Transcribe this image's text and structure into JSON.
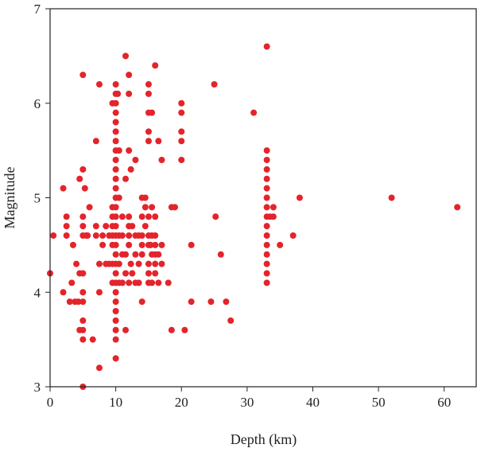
{
  "chart_data": {
    "type": "scatter",
    "title": "",
    "xlabel": "Depth (km)",
    "ylabel": "Magnitude",
    "xlim": [
      0,
      65
    ],
    "ylim": [
      3,
      7
    ],
    "xticks": [
      "0",
      "10",
      "20",
      "30",
      "40",
      "50",
      "60"
    ],
    "yticks": [
      "3",
      "4",
      "5",
      "6",
      "7"
    ],
    "grid": false,
    "marker_color": "#e3242b",
    "series": [
      {
        "points": [
          [
            0,
            4.2
          ],
          [
            0.5,
            4.6
          ],
          [
            2,
            5.1
          ],
          [
            2,
            4.0
          ],
          [
            2.5,
            4.7
          ],
          [
            2.5,
            4.8
          ],
          [
            2.5,
            4.6
          ],
          [
            3,
            3.9
          ],
          [
            3.3,
            4.1
          ],
          [
            3.5,
            4.5
          ],
          [
            3.8,
            3.9
          ],
          [
            4,
            4.3
          ],
          [
            4.3,
            3.9
          ],
          [
            4.5,
            4.2
          ],
          [
            4.5,
            3.6
          ],
          [
            4.5,
            5.2
          ],
          [
            5,
            6.3
          ],
          [
            5,
            5.3
          ],
          [
            5,
            4.8
          ],
          [
            5,
            4.7
          ],
          [
            5,
            4.6
          ],
          [
            5,
            4.2
          ],
          [
            5,
            4.0
          ],
          [
            5,
            3.9
          ],
          [
            5,
            3.7
          ],
          [
            5,
            3.6
          ],
          [
            5,
            3.5
          ],
          [
            5,
            3.0
          ],
          [
            5.3,
            5.1
          ],
          [
            5.5,
            4.6
          ],
          [
            5.7,
            4.6
          ],
          [
            6,
            4.9
          ],
          [
            6.5,
            3.5
          ],
          [
            7,
            5.6
          ],
          [
            7,
            4.7
          ],
          [
            7,
            4.6
          ],
          [
            7.5,
            6.2
          ],
          [
            7.5,
            4.3
          ],
          [
            7.5,
            4.0
          ],
          [
            7.5,
            3.2
          ],
          [
            8,
            4.5
          ],
          [
            8,
            4.6
          ],
          [
            8.5,
            4.3
          ],
          [
            8.5,
            4.7
          ],
          [
            9,
            4.3
          ],
          [
            9,
            4.6
          ],
          [
            9.5,
            4.1
          ],
          [
            9.5,
            4.3
          ],
          [
            9.5,
            4.5
          ],
          [
            9.5,
            4.6
          ],
          [
            9.5,
            4.7
          ],
          [
            9.5,
            4.8
          ],
          [
            9.5,
            4.9
          ],
          [
            9.5,
            6.0
          ],
          [
            10,
            6.2
          ],
          [
            10,
            6.1
          ],
          [
            10,
            6.0
          ],
          [
            10,
            5.9
          ],
          [
            10,
            5.8
          ],
          [
            10,
            5.7
          ],
          [
            10,
            5.6
          ],
          [
            10,
            5.5
          ],
          [
            10,
            5.4
          ],
          [
            10,
            5.3
          ],
          [
            10,
            5.2
          ],
          [
            10,
            5.1
          ],
          [
            10,
            5.0
          ],
          [
            10,
            4.9
          ],
          [
            10,
            4.8
          ],
          [
            10,
            4.7
          ],
          [
            10,
            4.6
          ],
          [
            10,
            4.5
          ],
          [
            10,
            4.4
          ],
          [
            10,
            4.3
          ],
          [
            10,
            4.2
          ],
          [
            10,
            4.1
          ],
          [
            10,
            4.0
          ],
          [
            10,
            3.9
          ],
          [
            10,
            3.8
          ],
          [
            10,
            3.7
          ],
          [
            10,
            3.6
          ],
          [
            10,
            3.5
          ],
          [
            10,
            3.3
          ],
          [
            10.3,
            6.1
          ],
          [
            10.5,
            5.5
          ],
          [
            10.5,
            5.0
          ],
          [
            10.5,
            4.6
          ],
          [
            10.5,
            4.3
          ],
          [
            10.5,
            4.1
          ],
          [
            11,
            4.8
          ],
          [
            11,
            4.6
          ],
          [
            11,
            4.4
          ],
          [
            11,
            4.1
          ],
          [
            11.5,
            6.5
          ],
          [
            11.5,
            5.2
          ],
          [
            11.5,
            4.4
          ],
          [
            11.5,
            4.2
          ],
          [
            11.5,
            3.6
          ],
          [
            12,
            6.3
          ],
          [
            12,
            6.1
          ],
          [
            12,
            5.5
          ],
          [
            12,
            4.8
          ],
          [
            12,
            4.7
          ],
          [
            12,
            4.6
          ],
          [
            12,
            4.5
          ],
          [
            12,
            4.1
          ],
          [
            12.3,
            5.3
          ],
          [
            12.3,
            4.3
          ],
          [
            12.5,
            4.7
          ],
          [
            12.5,
            4.2
          ],
          [
            13,
            5.4
          ],
          [
            13,
            4.6
          ],
          [
            13,
            4.4
          ],
          [
            13,
            4.1
          ],
          [
            13.5,
            4.6
          ],
          [
            13.5,
            4.3
          ],
          [
            13.5,
            4.1
          ],
          [
            14,
            5.0
          ],
          [
            14,
            4.8
          ],
          [
            14,
            4.6
          ],
          [
            14,
            4.5
          ],
          [
            14,
            4.4
          ],
          [
            14,
            3.9
          ],
          [
            14.5,
            5.0
          ],
          [
            14.5,
            4.9
          ],
          [
            14.5,
            4.7
          ],
          [
            15,
            6.2
          ],
          [
            15,
            6.1
          ],
          [
            15,
            5.9
          ],
          [
            15,
            5.7
          ],
          [
            15,
            5.6
          ],
          [
            15,
            4.8
          ],
          [
            15,
            4.6
          ],
          [
            15,
            4.5
          ],
          [
            15,
            4.3
          ],
          [
            15,
            4.2
          ],
          [
            15,
            4.1
          ],
          [
            15.3,
            4.5
          ],
          [
            15.5,
            5.9
          ],
          [
            15.5,
            4.9
          ],
          [
            15.5,
            4.6
          ],
          [
            15.5,
            4.4
          ],
          [
            15.5,
            4.1
          ],
          [
            16,
            6.4
          ],
          [
            16,
            4.8
          ],
          [
            16,
            4.6
          ],
          [
            16,
            4.5
          ],
          [
            16,
            4.4
          ],
          [
            16,
            4.3
          ],
          [
            16,
            4.2
          ],
          [
            16.5,
            5.6
          ],
          [
            16.5,
            4.4
          ],
          [
            16.5,
            4.1
          ],
          [
            17,
            5.4
          ],
          [
            17,
            4.5
          ],
          [
            17,
            4.3
          ],
          [
            18,
            4.1
          ],
          [
            18.5,
            4.9
          ],
          [
            18.5,
            3.6
          ],
          [
            19,
            4.9
          ],
          [
            20,
            6.0
          ],
          [
            20,
            5.9
          ],
          [
            20,
            5.7
          ],
          [
            20,
            5.6
          ],
          [
            20,
            5.4
          ],
          [
            20.5,
            3.6
          ],
          [
            21.5,
            4.5
          ],
          [
            21.5,
            3.9
          ],
          [
            24.5,
            3.9
          ],
          [
            25,
            6.2
          ],
          [
            25.2,
            4.8
          ],
          [
            26,
            4.4
          ],
          [
            26.8,
            3.9
          ],
          [
            27.5,
            3.7
          ],
          [
            31,
            5.9
          ],
          [
            33,
            6.6
          ],
          [
            33,
            5.5
          ],
          [
            33,
            5.4
          ],
          [
            33,
            5.3
          ],
          [
            33,
            5.2
          ],
          [
            33,
            5.1
          ],
          [
            33,
            5.0
          ],
          [
            33,
            4.9
          ],
          [
            33,
            4.8
          ],
          [
            33,
            4.7
          ],
          [
            33,
            4.6
          ],
          [
            33,
            4.5
          ],
          [
            33,
            4.4
          ],
          [
            33,
            4.3
          ],
          [
            33,
            4.2
          ],
          [
            33,
            4.1
          ],
          [
            33.5,
            4.8
          ],
          [
            34,
            4.9
          ],
          [
            34,
            4.8
          ],
          [
            35,
            4.5
          ],
          [
            37,
            4.6
          ],
          [
            38,
            5.0
          ],
          [
            52,
            5.0
          ],
          [
            62,
            4.9
          ]
        ]
      }
    ]
  }
}
